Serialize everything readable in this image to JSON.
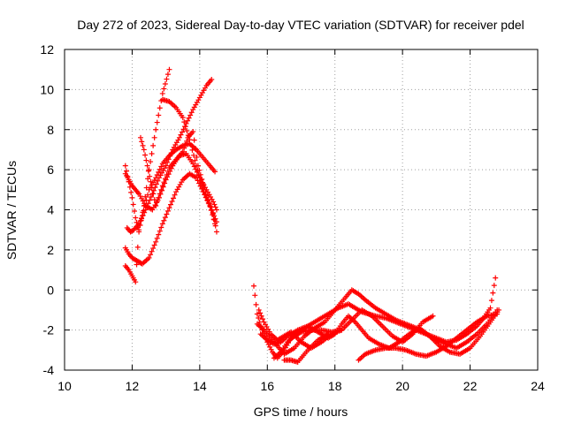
{
  "chart_data": {
    "type": "scatter",
    "title": "Day 272 of 2023, Sidereal Day-to-day VTEC variation (SDTVAR) for receiver pdel",
    "xlabel": "GPS time / hours",
    "ylabel": "SDTVAR / TECUs",
    "xlim": [
      10,
      24
    ],
    "ylim": [
      -4,
      12
    ],
    "xticks": [
      10,
      12,
      14,
      16,
      18,
      20,
      22,
      24
    ],
    "yticks": [
      -4,
      -2,
      0,
      2,
      4,
      6,
      8,
      10,
      12
    ],
    "grid": true,
    "marker": "+",
    "color": "#ff0000",
    "series": [
      {
        "name": "s1",
        "x": [
          11.8,
          11.9,
          12.0,
          12.1,
          12.2,
          12.35,
          12.5,
          12.7,
          12.9,
          13.1
        ],
        "y": [
          6.2,
          5.4,
          4.6,
          3.6,
          2.9,
          4.2,
          6.0,
          8.0,
          9.8,
          11.0
        ]
      },
      {
        "name": "s2",
        "x": [
          11.85,
          11.95,
          12.05,
          12.2,
          12.4,
          12.6,
          12.8,
          13.0,
          13.2,
          13.4,
          13.6,
          13.8,
          14.0,
          14.2,
          14.35
        ],
        "y": [
          3.1,
          2.9,
          3.0,
          3.3,
          4.0,
          4.8,
          5.6,
          6.2,
          7.0,
          7.6,
          8.3,
          9.0,
          9.6,
          10.2,
          10.5
        ]
      },
      {
        "name": "s3",
        "x": [
          11.8,
          11.9,
          12.0,
          12.1,
          12.2,
          12.3,
          12.5,
          12.7,
          12.9,
          13.1,
          13.3,
          13.5,
          13.7,
          13.9,
          14.1,
          14.3,
          14.45
        ],
        "y": [
          2.1,
          1.8,
          1.6,
          1.5,
          1.4,
          1.3,
          1.6,
          2.4,
          3.3,
          4.1,
          4.9,
          5.5,
          5.8,
          5.6,
          4.9,
          4.2,
          3.3
        ]
      },
      {
        "name": "s4",
        "x": [
          11.8,
          11.9,
          12.0,
          12.1,
          12.2,
          12.4,
          12.6,
          12.8,
          13.0,
          13.2,
          13.4,
          13.6,
          13.8,
          14.0,
          14.2,
          14.4,
          14.5
        ],
        "y": [
          5.8,
          5.5,
          5.2,
          5.0,
          4.8,
          4.2,
          4.0,
          4.6,
          5.5,
          6.2,
          6.7,
          6.8,
          6.3,
          5.6,
          5.0,
          4.4,
          4.0
        ]
      },
      {
        "name": "s5",
        "x": [
          11.8,
          11.9,
          12.0,
          12.1,
          12.2,
          12.3,
          12.5,
          12.7,
          12.9,
          13.1,
          13.3,
          13.5,
          13.7,
          13.9,
          14.1,
          14.3,
          14.45
        ],
        "y": [
          1.2,
          1.0,
          0.7,
          0.4,
          3.0,
          3.7,
          5.0,
          5.6,
          6.3,
          6.7,
          7.0,
          7.2,
          7.3,
          7.0,
          6.6,
          6.2,
          5.9
        ]
      },
      {
        "name": "s6",
        "x": [
          12.25,
          12.35,
          12.45,
          12.55,
          12.7,
          12.9,
          13.1,
          13.3,
          13.5,
          13.65,
          13.8,
          13.95,
          14.1,
          14.25,
          14.4,
          14.5
        ],
        "y": [
          7.6,
          7.0,
          6.2,
          5.4,
          4.2,
          5.2,
          6.1,
          6.5,
          6.9,
          7.6,
          7.9,
          6.2,
          5.3,
          4.5,
          3.8,
          2.9
        ]
      },
      {
        "name": "s7",
        "x": [
          12.9,
          13.1,
          13.3,
          13.5,
          13.7,
          13.9,
          14.05,
          14.2,
          14.35,
          14.5
        ],
        "y": [
          9.5,
          9.4,
          9.1,
          8.6,
          7.5,
          6.2,
          5.2,
          4.6,
          4.0,
          3.4
        ]
      },
      {
        "name": "s8",
        "x": [
          15.6,
          15.7,
          15.85,
          16.0,
          16.15,
          16.3,
          16.5,
          16.7,
          16.9,
          17.2,
          17.5,
          17.8,
          18.1,
          18.4,
          18.6,
          18.8,
          19.0,
          19.2,
          19.5,
          19.8,
          20.1,
          20.4,
          20.7,
          21.0,
          21.3,
          21.6,
          21.9,
          22.2,
          22.4,
          22.6,
          22.75
        ],
        "y": [
          0.2,
          -1.2,
          -2.0,
          -2.6,
          -3.1,
          -3.4,
          -3.0,
          -2.4,
          -2.2,
          -1.8,
          -1.5,
          -1.2,
          -0.9,
          -0.7,
          -0.9,
          -1.1,
          -1.2,
          -1.3,
          -1.4,
          -1.6,
          -1.8,
          -2.0,
          -2.2,
          -2.4,
          -2.6,
          -2.5,
          -2.2,
          -1.8,
          -1.4,
          -0.9,
          0.6
        ]
      },
      {
        "name": "s9",
        "x": [
          15.7,
          15.9,
          16.1,
          16.3,
          16.5,
          16.8,
          17.1,
          17.4,
          17.7,
          18.0,
          18.3,
          18.5,
          18.7,
          18.9,
          19.2,
          19.5,
          19.8,
          20.1,
          20.4,
          20.7,
          21.0,
          21.3,
          21.6,
          21.9,
          22.2,
          22.5,
          22.8
        ],
        "y": [
          -1.7,
          -2.0,
          -2.4,
          -2.8,
          -3.2,
          -2.9,
          -2.3,
          -1.9,
          -1.6,
          -1.0,
          -0.4,
          0.0,
          -0.2,
          -0.5,
          -0.9,
          -1.2,
          -1.5,
          -1.7,
          -1.9,
          -2.2,
          -2.5,
          -2.7,
          -2.9,
          -2.6,
          -2.2,
          -1.7,
          -1.0
        ]
      },
      {
        "name": "s10",
        "x": [
          15.8,
          16.0,
          16.2,
          16.4,
          16.6,
          16.9,
          17.2,
          17.5,
          17.8,
          18.0,
          18.2,
          18.4,
          18.6,
          18.8,
          19.0,
          19.3,
          19.6,
          19.9,
          20.2,
          20.5,
          20.8,
          21.1,
          21.4,
          21.7,
          22.0,
          22.3,
          22.6,
          22.85
        ],
        "y": [
          -2.2,
          -2.5,
          -2.7,
          -2.6,
          -2.3,
          -2.0,
          -1.8,
          -2.1,
          -2.4,
          -2.2,
          -1.7,
          -1.3,
          -1.6,
          -2.0,
          -2.4,
          -2.7,
          -2.9,
          -2.6,
          -2.2,
          -1.9,
          -2.3,
          -2.8,
          -3.1,
          -3.2,
          -2.9,
          -2.3,
          -1.6,
          -1.0
        ]
      },
      {
        "name": "s11",
        "x": [
          16.2,
          16.4,
          16.6,
          16.8,
          17.0,
          17.3,
          17.6,
          17.9,
          18.2,
          18.5,
          18.8,
          19.1,
          19.4,
          19.7,
          20.0,
          20.3,
          20.6,
          20.9
        ],
        "y": [
          -3.4,
          -3.1,
          -2.6,
          -2.3,
          -2.1,
          -2.0,
          -2.0,
          -2.1,
          -2.0,
          -1.5,
          -1.0,
          -1.3,
          -1.8,
          -2.3,
          -2.6,
          -2.2,
          -1.6,
          -1.3
        ]
      },
      {
        "name": "s12",
        "x": [
          18.7,
          18.9,
          19.2,
          19.5,
          19.8,
          20.1,
          20.4,
          20.7,
          21.0,
          21.3,
          21.6,
          21.9,
          22.2,
          22.5,
          22.8
        ],
        "y": [
          -3.5,
          -3.2,
          -3.0,
          -2.9,
          -2.9,
          -3.0,
          -3.2,
          -3.3,
          -3.1,
          -2.8,
          -2.4,
          -2.0,
          -1.6,
          -1.3,
          -1.2
        ]
      },
      {
        "name": "s13",
        "x": [
          16.5,
          16.7,
          16.9,
          17.2,
          17.5,
          17.8
        ],
        "y": [
          -3.5,
          -3.5,
          -3.6,
          -3.0,
          -2.5,
          -2.2
        ]
      },
      {
        "name": "s14",
        "x": [
          15.75,
          15.9,
          16.1,
          16.3,
          16.5,
          16.7,
          17.0,
          17.3,
          17.6,
          17.9,
          18.2
        ],
        "y": [
          -1.0,
          -1.6,
          -2.2,
          -2.5,
          -2.3,
          -2.1,
          -2.6,
          -2.9,
          -2.6,
          -2.2,
          -2.0
        ]
      }
    ]
  }
}
